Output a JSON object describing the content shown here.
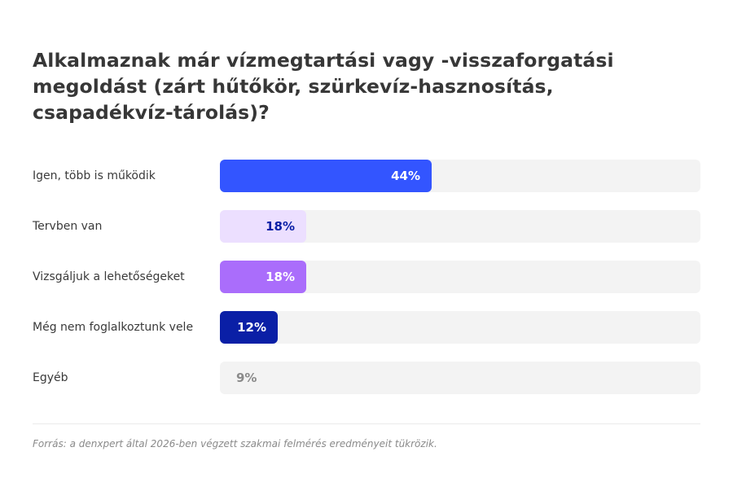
{
  "chart_data": {
    "type": "bar",
    "orientation": "horizontal",
    "title": "Alkalmaznak már vízmegtartási vagy -visszaforgatási megoldást (zárt hűtőkör, szürkevíz-hasznosítás, csapadékvíz-tárolás)?",
    "categories": [
      "Igen, több is működik",
      "Tervben van",
      "Vizsgáljuk a lehetőségeket",
      "Még nem foglalkoztunk vele",
      "Egyéb"
    ],
    "values": [
      44,
      18,
      18,
      12,
      9
    ],
    "value_labels": [
      "44%",
      "18%",
      "18%",
      "12%",
      "9%"
    ],
    "unit": "%",
    "xlim": [
      0,
      100
    ],
    "grid": false,
    "colors": [
      "#3355ff",
      "#ecdfff",
      "#aa6dfb",
      "#0a1fa6",
      null
    ],
    "label_colors": [
      "#ffffff",
      "#0a1fa6",
      "#ffffff",
      "#ffffff",
      "#8a8a8a"
    ],
    "track_color": "#f3f3f3"
  },
  "footer": {
    "source": "Forrás: a denxpert által 2026-ben végzett szakmai felmérés eredményeit tükrözik."
  }
}
